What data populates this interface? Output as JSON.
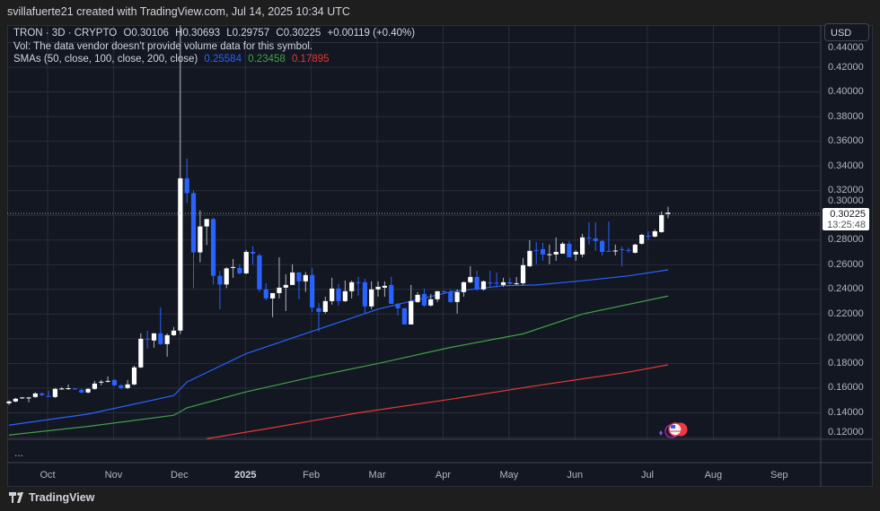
{
  "credit": "svillafuerte21 created with TradingView.com, Jul 14, 2025 10:34 UTC",
  "legend": {
    "symbol": "TRON · 3D · CRYPTO",
    "open": "O0.30106",
    "high": "H0.30693",
    "low": "L0.29757",
    "close": "C0.30225",
    "change": "+0.00119 (+0.40%)",
    "vol": "Vol: The data vendor doesn't provide volume data for this symbol.",
    "sma_label": "SMAs (50, close, 100, close, 200, close)",
    "sma50": "0.25584",
    "sma100": "0.23458",
    "sma200": "0.17895"
  },
  "currency_button": "USD",
  "last_price": {
    "price": "0.30225",
    "countdown": "13:25:48"
  },
  "more_label": "...",
  "footer_brand": "TradingView",
  "colors": {
    "up": "#ffffff",
    "down": "#2962ff",
    "sma50": "#2962ff",
    "sma100": "#43a047",
    "sma200": "#e53935",
    "background": "#131722",
    "grid": "#2a2e39"
  },
  "chart_data": {
    "type": "candlestick",
    "symbol": "TRON",
    "interval": "3D",
    "ylim": [
      0.12,
      0.44
    ],
    "price_ticks": [
      "0.44000",
      "0.42000",
      "0.40000",
      "0.38000",
      "0.36000",
      "0.34000",
      "0.32000",
      "0.30000",
      "0.28000",
      "0.26000",
      "0.24000",
      "0.22000",
      "0.20000",
      "0.18000",
      "0.16000",
      "0.14000",
      "0.12000"
    ],
    "time_ticks": [
      {
        "label": "Oct",
        "index": 6,
        "bold": false
      },
      {
        "label": "Nov",
        "index": 16,
        "bold": false
      },
      {
        "label": "Dec",
        "index": 26,
        "bold": false
      },
      {
        "label": "2025",
        "index": 36,
        "bold": true
      },
      {
        "label": "Feb",
        "index": 46,
        "bold": false
      },
      {
        "label": "Mar",
        "index": 56,
        "bold": false
      },
      {
        "label": "Apr",
        "index": 66,
        "bold": false
      },
      {
        "label": "May",
        "index": 76,
        "bold": false
      },
      {
        "label": "Jun",
        "index": 86,
        "bold": false
      },
      {
        "label": "Jul",
        "index": 97,
        "bold": false
      },
      {
        "label": "Aug",
        "index": 107,
        "bold": false
      },
      {
        "label": "Sep",
        "index": 117,
        "bold": false
      }
    ],
    "ohlc": [
      [
        0.1477,
        0.15,
        0.1463,
        0.1492
      ],
      [
        0.1492,
        0.1521,
        0.1485,
        0.1514
      ],
      [
        0.1521,
        0.1528,
        0.1514,
        0.1524
      ],
      [
        0.1521,
        0.1528,
        0.1485,
        0.1524
      ],
      [
        0.1528,
        0.1565,
        0.1521,
        0.1557
      ],
      [
        0.1557,
        0.1565,
        0.1536,
        0.1543
      ],
      [
        0.1536,
        0.1579,
        0.1528,
        0.1533
      ],
      [
        0.1528,
        0.1601,
        0.1521,
        0.1594
      ],
      [
        0.1594,
        0.1608,
        0.1586,
        0.1597
      ],
      [
        0.1594,
        0.163,
        0.1586,
        0.1599
      ],
      [
        0.1597,
        0.1601,
        0.1586,
        0.1592
      ],
      [
        0.1586,
        0.1594,
        0.1557,
        0.1565
      ],
      [
        0.1565,
        0.1601,
        0.1557,
        0.1594
      ],
      [
        0.1594,
        0.1659,
        0.1586,
        0.1637
      ],
      [
        0.1645,
        0.1666,
        0.1623,
        0.1652
      ],
      [
        0.1652,
        0.1695,
        0.1645,
        0.1659
      ],
      [
        0.1666,
        0.1673,
        0.1615,
        0.1623
      ],
      [
        0.1623,
        0.163,
        0.1594,
        0.1601
      ],
      [
        0.1601,
        0.1666,
        0.1594,
        0.163
      ],
      [
        0.163,
        0.1782,
        0.1623,
        0.1768
      ],
      [
        0.1768,
        0.2044,
        0.1761,
        0.2
      ],
      [
        0.2,
        0.2066,
        0.192,
        0.1993
      ],
      [
        0.1986,
        0.2044,
        0.1928,
        0.2044
      ],
      [
        0.2044,
        0.2255,
        0.195,
        0.1957
      ],
      [
        0.1957,
        0.2044,
        0.1855,
        0.2029
      ],
      [
        0.2029,
        0.2095,
        0.2022,
        0.2066
      ],
      [
        0.2066,
        0.454,
        0.2037,
        0.33
      ],
      [
        0.33,
        0.346,
        0.31,
        0.318
      ],
      [
        0.318,
        0.32,
        0.241,
        0.27
      ],
      [
        0.27,
        0.304,
        0.262,
        0.291
      ],
      [
        0.291,
        0.297,
        0.276,
        0.297
      ],
      [
        0.297,
        0.298,
        0.244,
        0.251
      ],
      [
        0.251,
        0.255,
        0.224,
        0.244
      ],
      [
        0.244,
        0.258,
        0.241,
        0.257
      ],
      [
        0.258,
        0.2646,
        0.2494,
        0.2581
      ],
      [
        0.2574,
        0.2603,
        0.2523,
        0.253
      ],
      [
        0.253,
        0.2719,
        0.2523,
        0.2704
      ],
      [
        0.2704,
        0.2748,
        0.26,
        0.269
      ],
      [
        0.2675,
        0.269,
        0.238,
        0.24
      ],
      [
        0.24,
        0.245,
        0.2312,
        0.2327
      ],
      [
        0.2327,
        0.234,
        0.2175,
        0.237
      ],
      [
        0.237,
        0.2661,
        0.2327,
        0.2414
      ],
      [
        0.2414,
        0.2523,
        0.2225,
        0.2436
      ],
      [
        0.2436,
        0.2603,
        0.2436,
        0.2537
      ],
      [
        0.2537,
        0.254,
        0.232,
        0.2465
      ],
      [
        0.2465,
        0.254,
        0.238,
        0.2516
      ],
      [
        0.2516,
        0.2574,
        0.2218,
        0.2254
      ],
      [
        0.2247,
        0.2291,
        0.2058,
        0.2218
      ],
      [
        0.2218,
        0.2341,
        0.2204,
        0.2305
      ],
      [
        0.2305,
        0.2494,
        0.2276,
        0.2407
      ],
      [
        0.2407,
        0.2443,
        0.227,
        0.2305
      ],
      [
        0.2305,
        0.2472,
        0.2298,
        0.2385
      ],
      [
        0.2385,
        0.2472,
        0.2327,
        0.2458
      ],
      [
        0.2458,
        0.2501,
        0.2349,
        0.2455
      ],
      [
        0.2458,
        0.2487,
        0.2204,
        0.2262
      ],
      [
        0.2262,
        0.2465,
        0.224,
        0.24
      ],
      [
        0.24,
        0.2465,
        0.2341,
        0.2421
      ],
      [
        0.2414,
        0.2465,
        0.2341,
        0.2429
      ],
      [
        0.2436,
        0.2501,
        0.2283,
        0.2283
      ],
      [
        0.2283,
        0.229,
        0.2189,
        0.2247
      ],
      [
        0.2247,
        0.225,
        0.2116,
        0.2116
      ],
      [
        0.2116,
        0.2436,
        0.2116,
        0.2305
      ],
      [
        0.2298,
        0.2378,
        0.229,
        0.2356
      ],
      [
        0.2363,
        0.2407,
        0.2262,
        0.2269
      ],
      [
        0.2269,
        0.2363,
        0.2262,
        0.232
      ],
      [
        0.232,
        0.2385,
        0.2298,
        0.2385
      ],
      [
        0.2385,
        0.2392,
        0.237,
        0.2378
      ],
      [
        0.2378,
        0.24,
        0.2291,
        0.2298
      ],
      [
        0.2298,
        0.24,
        0.2204,
        0.2378
      ],
      [
        0.2378,
        0.2465,
        0.2341,
        0.2458
      ],
      [
        0.2458,
        0.2588,
        0.245,
        0.2501
      ],
      [
        0.2501,
        0.2552,
        0.239,
        0.24
      ],
      [
        0.24,
        0.2472,
        0.239,
        0.2465
      ],
      [
        0.2455,
        0.2552,
        0.2421,
        0.245
      ],
      [
        0.2455,
        0.2537,
        0.2414,
        0.245
      ],
      [
        0.2436,
        0.2494,
        0.2421,
        0.2458
      ],
      [
        0.2458,
        0.2494,
        0.244,
        0.2445
      ],
      [
        0.2447,
        0.2501,
        0.2436,
        0.245
      ],
      [
        0.245,
        0.2654,
        0.2436,
        0.2596
      ],
      [
        0.2588,
        0.2799,
        0.2581,
        0.2712
      ],
      [
        0.2719,
        0.2784,
        0.2603,
        0.2716
      ],
      [
        0.2726,
        0.2777,
        0.2632,
        0.2683
      ],
      [
        0.2683,
        0.2763,
        0.2603,
        0.2685
      ],
      [
        0.2683,
        0.2821,
        0.2632,
        0.2704
      ],
      [
        0.269,
        0.2784,
        0.269,
        0.277
      ],
      [
        0.277,
        0.2792,
        0.2661,
        0.2661
      ],
      [
        0.2683,
        0.2719,
        0.2632,
        0.2704
      ],
      [
        0.2683,
        0.285,
        0.2661,
        0.2821
      ],
      [
        0.2821,
        0.2944,
        0.2763,
        0.2815
      ],
      [
        0.2813,
        0.2944,
        0.2712,
        0.2792
      ],
      [
        0.2792,
        0.28,
        0.2675,
        0.2704
      ],
      [
        0.2712,
        0.2951,
        0.2704,
        0.271
      ],
      [
        0.2712,
        0.2763,
        0.2675,
        0.2715
      ],
      [
        0.2726,
        0.2748,
        0.2588,
        0.2724
      ],
      [
        0.2719,
        0.274,
        0.27,
        0.2712
      ],
      [
        0.2697,
        0.277,
        0.269,
        0.2763
      ],
      [
        0.277,
        0.285,
        0.2763,
        0.2842
      ],
      [
        0.2835,
        0.2871,
        0.2799,
        0.283
      ],
      [
        0.2828,
        0.2886,
        0.282,
        0.2871
      ],
      [
        0.2864,
        0.3031,
        0.286,
        0.3002
      ],
      [
        0.30106,
        0.30693,
        0.29757,
        0.30225
      ]
    ],
    "sma": [
      {
        "name": "SMA 50",
        "last": 0.25584,
        "points": [
          [
            0,
            0.13
          ],
          [
            12,
            0.139
          ],
          [
            25,
            0.154
          ],
          [
            27,
            0.165
          ],
          [
            36,
            0.188
          ],
          [
            46,
            0.206
          ],
          [
            56,
            0.224
          ],
          [
            67,
            0.238
          ],
          [
            75,
            0.243
          ],
          [
            80,
            0.2436
          ],
          [
            87,
            0.247
          ],
          [
            94,
            0.251
          ],
          [
            100,
            0.25584
          ]
        ]
      },
      {
        "name": "SMA 100",
        "last": 0.23458,
        "points": [
          [
            0,
            0.122
          ],
          [
            12,
            0.129
          ],
          [
            25,
            0.138
          ],
          [
            27,
            0.144
          ],
          [
            36,
            0.157
          ],
          [
            46,
            0.169
          ],
          [
            56,
            0.18
          ],
          [
            67,
            0.193
          ],
          [
            78,
            0.204
          ],
          [
            87,
            0.22
          ],
          [
            100,
            0.23458
          ]
        ]
      },
      {
        "name": "SMA 200",
        "last": 0.17895,
        "points": [
          [
            30,
            0.119
          ],
          [
            39,
            0.127
          ],
          [
            53,
            0.14
          ],
          [
            67,
            0.151
          ],
          [
            80,
            0.162
          ],
          [
            94,
            0.173
          ],
          [
            100,
            0.17895
          ]
        ]
      }
    ]
  }
}
